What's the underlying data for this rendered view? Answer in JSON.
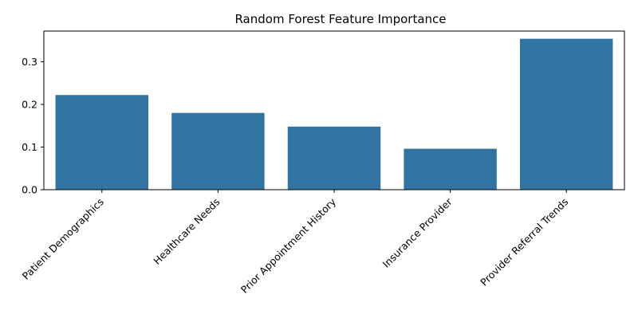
{
  "chart_data": {
    "type": "bar",
    "title": "Random Forest Feature Importance",
    "xlabel": "",
    "ylabel": "",
    "categories": [
      "Patient Demographics",
      "Healthcare Needs",
      "Prior Appointment History",
      "Insurance Provider",
      "Provider Referral Trends"
    ],
    "values": [
      0.222,
      0.18,
      0.148,
      0.096,
      0.354
    ],
    "ylim": [
      0,
      0.372
    ],
    "yticks": [
      0.0,
      0.1,
      0.2,
      0.3
    ],
    "ytick_labels": [
      "0.0",
      "0.1",
      "0.2",
      "0.3"
    ],
    "bar_color": "#3274a1",
    "grid": false,
    "legend": "none"
  }
}
